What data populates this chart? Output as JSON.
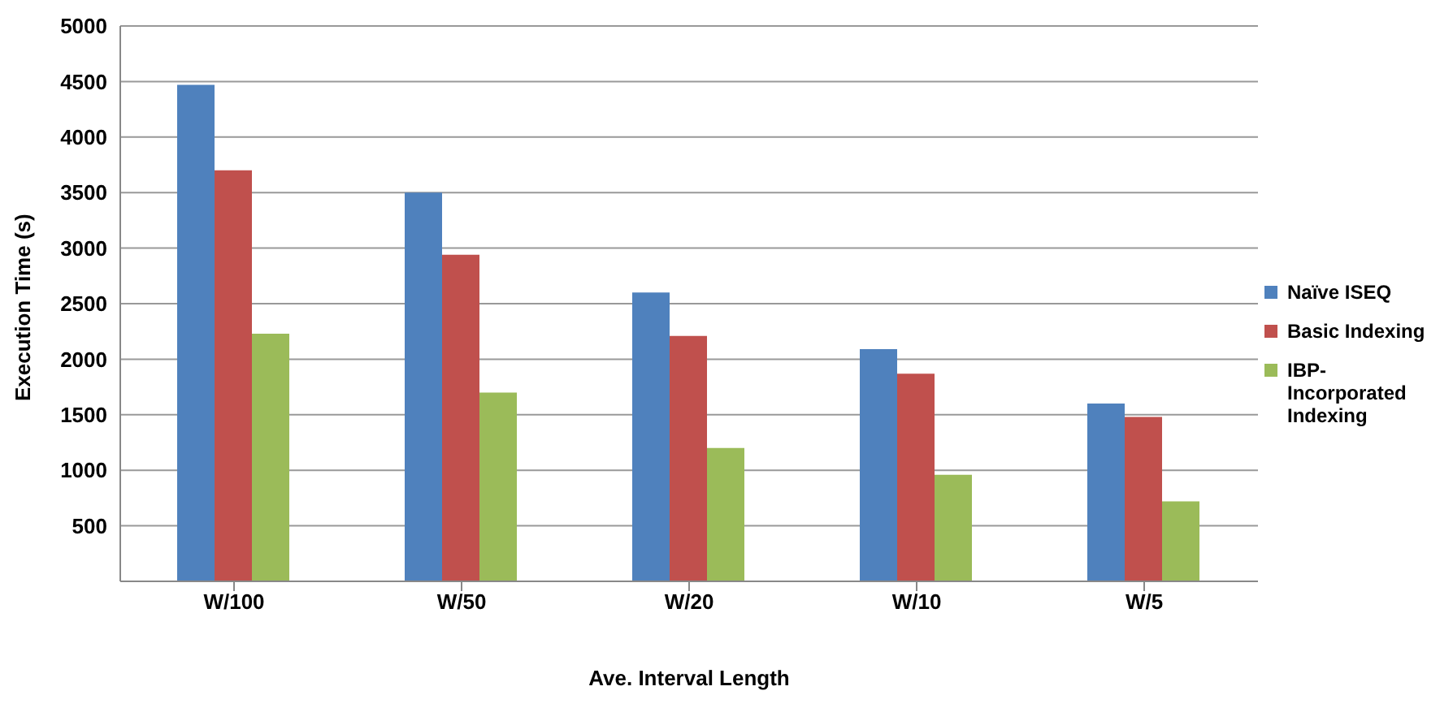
{
  "chart_data": {
    "type": "bar",
    "xlabel": "Ave. Interval Length",
    "ylabel": "Execution Time (s)",
    "categories": [
      "W/100",
      "W/50",
      "W/20",
      "W/10",
      "W/5"
    ],
    "series": [
      {
        "name": "Naïve ISEQ",
        "color": "#4f81bd",
        "values": [
          4470,
          3500,
          2600,
          2090,
          1600
        ]
      },
      {
        "name": "Basic Indexing",
        "color": "#c0504d",
        "values": [
          3700,
          2940,
          2210,
          1870,
          1480
        ]
      },
      {
        "name": "IBP-Incorporated Indexing",
        "color": "#9bbb59",
        "values": [
          2230,
          1700,
          1200,
          960,
          720
        ]
      }
    ],
    "ylim": [
      0,
      5000
    ],
    "yticks": [
      500,
      1000,
      1500,
      2000,
      2500,
      3000,
      3500,
      4000,
      4500,
      5000
    ],
    "grid": "y",
    "legend": "right"
  }
}
